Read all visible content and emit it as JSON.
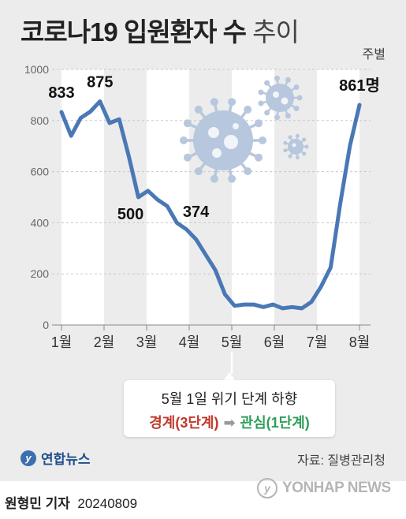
{
  "header": {
    "title_main": "코로나19 입원환자 수",
    "title_sub": "추이",
    "unit": "주별"
  },
  "chart_data": {
    "type": "line",
    "title": "코로나19 입원환자 수 추이",
    "ylim": [
      0,
      1000
    ],
    "yticks": [
      0,
      200,
      400,
      600,
      800,
      1000
    ],
    "month_labels": [
      "1월",
      "2월",
      "3월",
      "4월",
      "5월",
      "6월",
      "7월",
      "8월"
    ],
    "x_unit": "week",
    "x": [
      1,
      2,
      3,
      4,
      5,
      6,
      7,
      8,
      9,
      10,
      11,
      12,
      13,
      14,
      15,
      16,
      17,
      18,
      19,
      20,
      21,
      22,
      23,
      24,
      25,
      26,
      27,
      28,
      29,
      30,
      31,
      32
    ],
    "values": [
      833,
      740,
      810,
      835,
      875,
      790,
      805,
      660,
      500,
      525,
      490,
      465,
      400,
      374,
      335,
      275,
      215,
      120,
      75,
      80,
      80,
      70,
      80,
      65,
      70,
      65,
      90,
      150,
      225,
      475,
      700,
      861
    ],
    "data_labels": [
      {
        "week": 1,
        "text": "833"
      },
      {
        "week": 5,
        "text": "875"
      },
      {
        "week": 9,
        "text": "500"
      },
      {
        "week": 14,
        "text": "374"
      },
      {
        "week": 32,
        "text": "861명"
      }
    ],
    "line_color": "#4a78b5",
    "band_color": "#ffffff",
    "grid": true
  },
  "annotation": {
    "line1": "5월 1일 위기 단계 하향",
    "from": "경계(3단계)",
    "arrow": "➡",
    "to": "관심(1단계)",
    "from_color": "#c0392b",
    "to_color": "#2e9e5b"
  },
  "footer": {
    "logo_text": "연합뉴스",
    "source": "자료: 질병관리청",
    "reporter": "원형민 기자",
    "date": "20240809",
    "watermark": "YONHAP NEWS"
  }
}
